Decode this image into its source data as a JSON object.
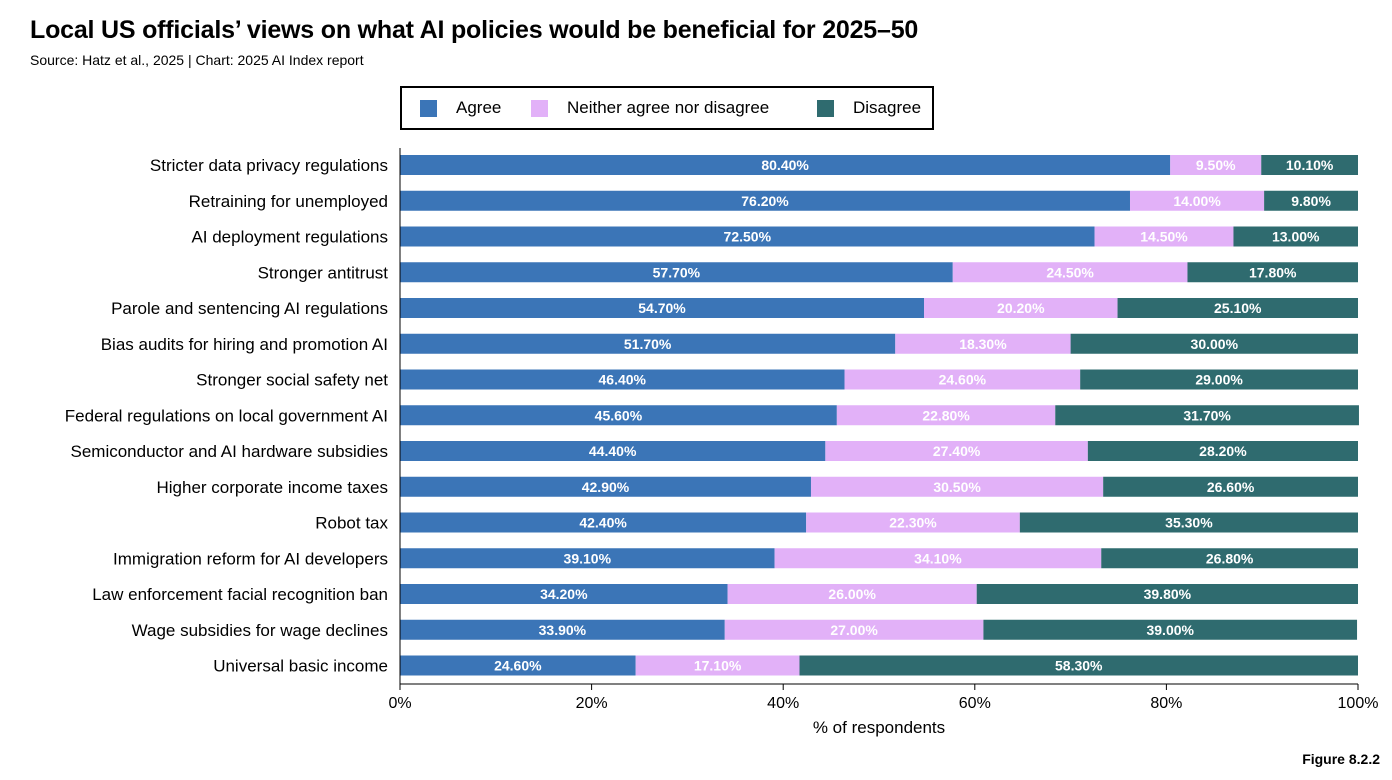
{
  "title": "Local US officials’ views on what AI policies would be beneficial for 2025–50",
  "subtitle": "Source: Hatz et al., 2025 | Chart: 2025 AI Index report",
  "figure_label": "Figure 8.2.2",
  "colors": {
    "agree": "#3b75b7",
    "neither": "#e2b1f8",
    "disagree": "#2f6b6f"
  },
  "chart_data": {
    "type": "bar",
    "orientation": "horizontal",
    "stacked": true,
    "title": "Local US officials’ views on what AI policies would be beneficial for 2025–50",
    "xlabel": "% of respondents",
    "ylabel": "",
    "xlim": [
      0,
      100
    ],
    "xticks": [
      "0%",
      "20%",
      "40%",
      "60%",
      "80%",
      "100%"
    ],
    "legend_position": "top",
    "categories": [
      "Stricter data privacy regulations",
      "Retraining for unemployed",
      "AI deployment regulations",
      "Stronger antitrust",
      "Parole and sentencing AI regulations",
      "Bias audits for hiring and promotion AI",
      "Stronger social safety net",
      "Federal regulations on local government AI",
      "Semiconductor and AI hardware subsidies",
      "Higher corporate income taxes",
      "Robot tax",
      "Immigration reform for AI developers",
      "Law enforcement facial recognition ban",
      "Wage subsidies for wage declines",
      "Universal basic income"
    ],
    "series": [
      {
        "name": "Agree",
        "values": [
          80.4,
          76.2,
          72.5,
          57.7,
          54.7,
          51.7,
          46.4,
          45.6,
          44.4,
          42.9,
          42.4,
          39.1,
          34.2,
          33.9,
          24.6
        ]
      },
      {
        "name": "Neither agree nor disagree",
        "values": [
          9.5,
          14.0,
          14.5,
          24.5,
          20.2,
          18.3,
          24.6,
          22.8,
          27.4,
          30.5,
          22.3,
          34.1,
          26.0,
          27.0,
          17.1
        ]
      },
      {
        "name": "Disagree",
        "values": [
          10.1,
          9.8,
          13.0,
          17.8,
          25.1,
          30.0,
          29.0,
          31.7,
          28.2,
          26.6,
          35.3,
          26.8,
          39.8,
          39.0,
          58.3
        ]
      }
    ]
  }
}
